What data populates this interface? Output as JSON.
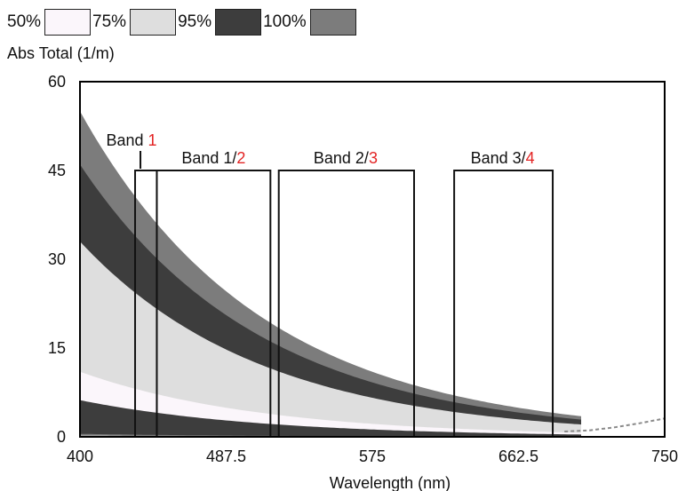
{
  "legend": [
    {
      "label": "50%",
      "color": "#fbf6fb"
    },
    {
      "label": "75%",
      "color": "#dedede"
    },
    {
      "label": "95%",
      "color": "#3d3d3d"
    },
    {
      "label": "100%",
      "color": "#7c7c7c"
    }
  ],
  "colors": {
    "highlight": "#e32424"
  },
  "chart_data": {
    "type": "area",
    "xlabel": "Wavelength (nm)",
    "ylabel": "Abs Total (1/m)",
    "xlim": [
      400,
      750
    ],
    "ylim": [
      0,
      60
    ],
    "xticks": [
      "400",
      "487.5",
      "575",
      "662.5",
      "750"
    ],
    "yticks": [
      "0",
      "15",
      "30",
      "45",
      "60"
    ],
    "grid": false,
    "legend_position": "top-left",
    "decay_per_nm": 0.0092,
    "series": [
      {
        "name": "100%",
        "lower": 0.2,
        "upper": 55,
        "to_wavelength": 700
      },
      {
        "name": "95%",
        "lower": 1.0,
        "upper": 46,
        "to_wavelength": 700
      },
      {
        "name": "75%",
        "lower": 2.2,
        "upper": 33,
        "to_wavelength": 700
      },
      {
        "name": "50%",
        "lower": 3.8,
        "upper": 11,
        "to_wavelength": 700
      }
    ],
    "low_band": {
      "lower": 0.5,
      "upper": 6.2
    },
    "tail": {
      "x": [
        690,
        705,
        720,
        735,
        750
      ],
      "y": [
        0.9,
        1.1,
        1.6,
        2.3,
        3.1
      ]
    },
    "bands": [
      {
        "name": "Band",
        "number": "1",
        "x_start": 433,
        "x_end": 446,
        "ylabel_x": 433
      },
      {
        "name": "Band 1/",
        "number": "2",
        "x_start": 446,
        "x_end": 514,
        "ylabel_x": 480
      },
      {
        "name": "Band 2/",
        "number": "3",
        "x_start": 519,
        "x_end": 600,
        "ylabel_x": 559
      },
      {
        "name": "Band 3/",
        "number": "4",
        "x_start": 624,
        "x_end": 683,
        "ylabel_x": 653
      }
    ],
    "band_height": 45
  }
}
